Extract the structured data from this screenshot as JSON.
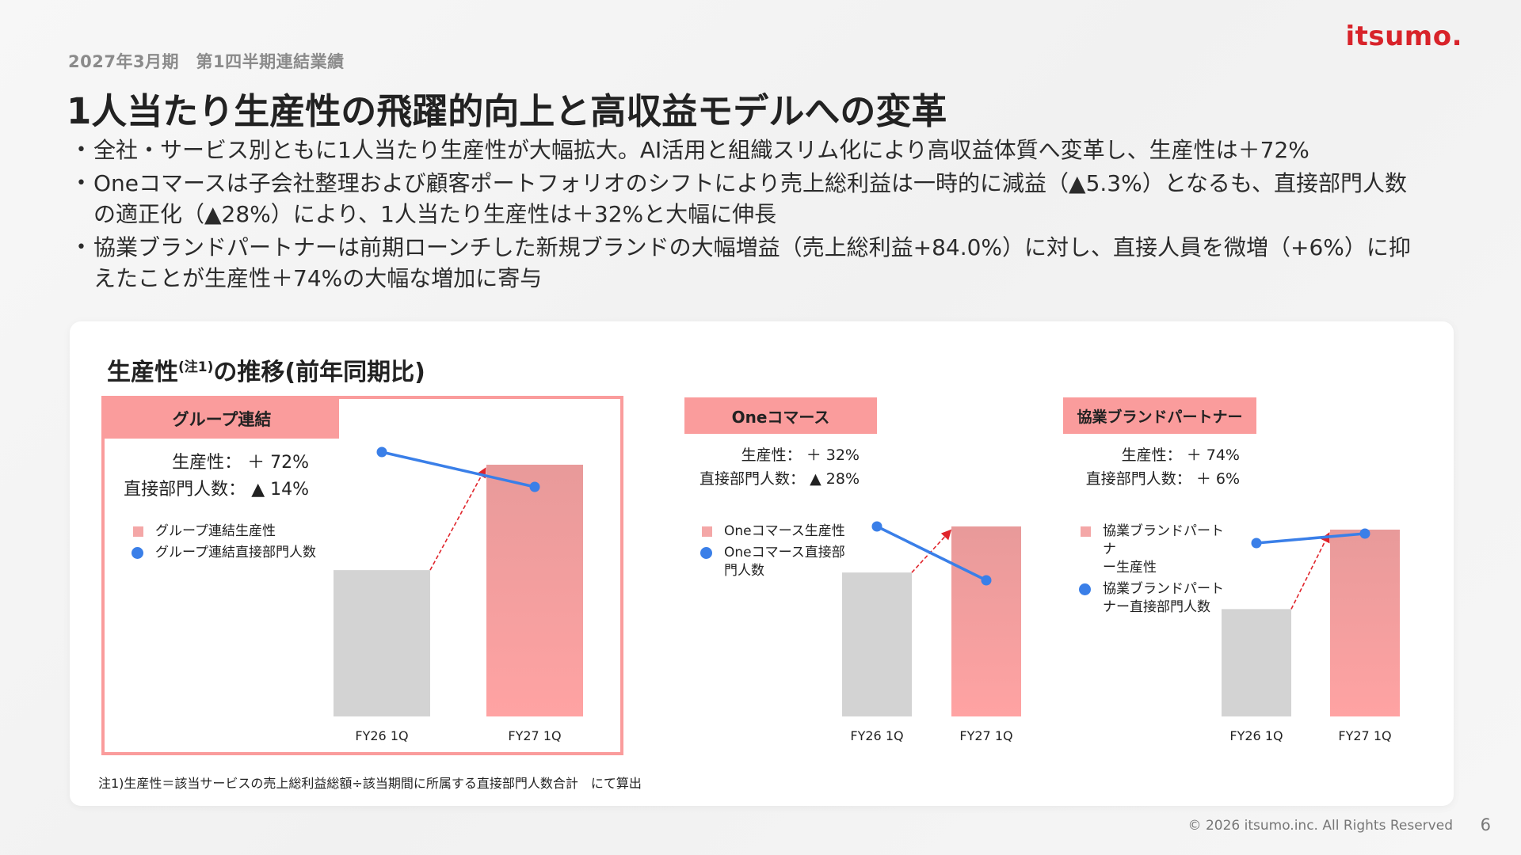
{
  "header": {
    "subhead": "2027年3月期　第1四半期連結業績",
    "logo": "itsumo.",
    "title": "1人当たり生産性の飛躍的向上と高収益モデルへの変革"
  },
  "bullets": [
    "全社・サービス別ともに1人当たり生産性が大幅拡大。AI活用と組織スリム化により高収益体質へ変革し、生産性は＋72%",
    "Oneコマースは子会社整理および顧客ポートフォリオのシフトにより売上総利益は一時的に減益（▲5.3%）となるも、直接部門人数の適正化（▲28%）により、1人当たり生産性は＋32%と大幅に伸長",
    "協業ブランドパートナーは前期ローンチした新規ブランドの大幅増益（売上総利益+84.0%）に対し、直接人員を微増（+6%）に抑えたことが生産性＋74%の大幅な増加に寄与"
  ],
  "card": {
    "title_main": "生産性",
    "title_sup": "(注1)",
    "title_rest": "の推移(前年同期比)",
    "note": "注1)生産性＝該当サービスの売上総利益総額÷該当期間に所属する直接部門人数合計　にて算出"
  },
  "colors": {
    "bar_prev": "#d3d3d3",
    "bar_curr": "#f4a0a0",
    "line": "#3a7fe8",
    "arrow": "#e0242b",
    "tag": "#fa9c9c"
  },
  "chart_data": [
    {
      "type": "bar",
      "panel": "グループ連結",
      "categories": [
        "FY26 1Q",
        "FY27 1Q"
      ],
      "series": [
        {
          "name": "グループ連結生産性",
          "type": "bar",
          "values": [
            100,
            172
          ]
        },
        {
          "name": "グループ連結直接部門人数",
          "type": "line",
          "values": [
            100,
            86
          ]
        }
      ],
      "stats": [
        {
          "label": "生産性：",
          "value": "＋ 72%"
        },
        {
          "label": "直接部門人数：",
          "value": "▲ 14%"
        }
      ],
      "legend": [
        "グループ連結生産性",
        "グループ連結直接部門人数"
      ]
    },
    {
      "type": "bar",
      "panel": "Oneコマース",
      "categories": [
        "FY26 1Q",
        "FY27 1Q"
      ],
      "series": [
        {
          "name": "Oneコマース生産性",
          "type": "bar",
          "values": [
            100,
            132
          ]
        },
        {
          "name": "Oneコマース直接部門人数",
          "type": "line",
          "values": [
            100,
            72
          ]
        }
      ],
      "stats": [
        {
          "label": "生産性：",
          "value": "＋ 32%"
        },
        {
          "label": "直接部門人数：",
          "value": "▲ 28%"
        }
      ],
      "legend": [
        "Oneコマース生産性",
        "Oneコマース直接部\n門人数"
      ]
    },
    {
      "type": "bar",
      "panel": "協業ブランドパートナー",
      "categories": [
        "FY26 1Q",
        "FY27 1Q"
      ],
      "series": [
        {
          "name": "協業ブランドパートナー生産性",
          "type": "bar",
          "values": [
            100,
            174
          ]
        },
        {
          "name": "協業ブランドパートナー直接部門人数",
          "type": "line",
          "values": [
            100,
            106
          ]
        }
      ],
      "stats": [
        {
          "label": "生産性：",
          "value": "＋ 74%"
        },
        {
          "label": "直接部門人数：",
          "value": "＋ 6%"
        }
      ],
      "legend": [
        "協業ブランドパートナ\nー生産性",
        "協業ブランドパート\nナー直接部門人数"
      ]
    }
  ],
  "footer": {
    "copyright": "© 2026 itsumo.inc. All Rights Reserved",
    "page": "6"
  }
}
